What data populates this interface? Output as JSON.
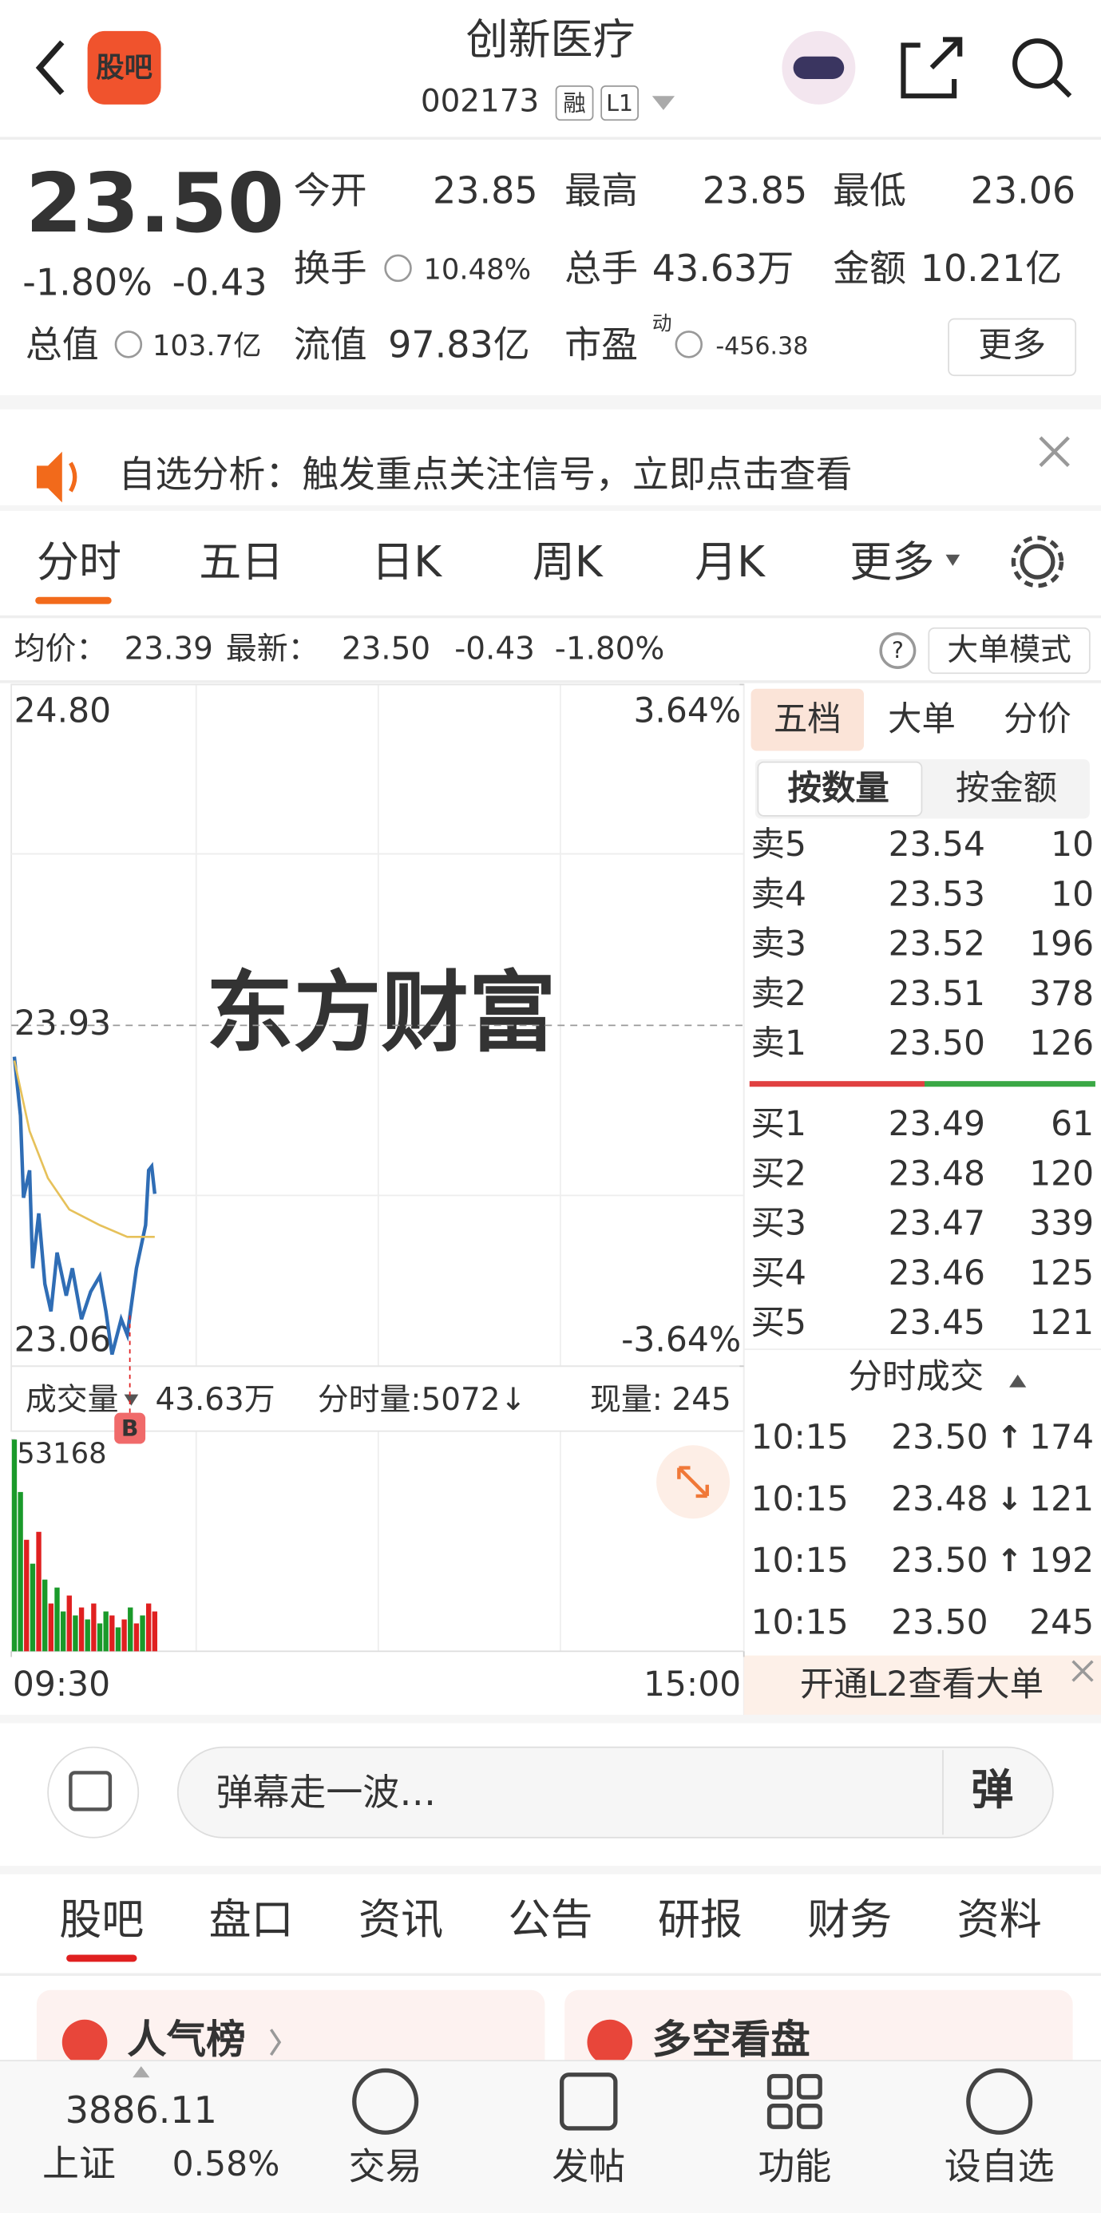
{
  "header": {
    "logo": "股吧",
    "title": "创新医疗",
    "code": "002173",
    "tags": [
      "融",
      "L1"
    ]
  },
  "quote": {
    "price": "23.50",
    "change_pct": "-1.80%",
    "change": "-0.43",
    "fields": [
      {
        "label": "今开",
        "value": "23.85"
      },
      {
        "label": "最高",
        "value": "23.85"
      },
      {
        "label": "最低",
        "value": "23.06"
      },
      {
        "label": "换手",
        "value": "10.48%"
      },
      {
        "label": "总手",
        "value": "43.63万"
      },
      {
        "label": "金额",
        "value": "10.21亿"
      },
      {
        "label": "总值",
        "value": "103.7亿"
      },
      {
        "label": "流值",
        "value": "97.83亿"
      },
      {
        "label": "市盈",
        "superscript": "动",
        "value": "-456.38"
      }
    ],
    "more_button": "更多"
  },
  "notice": "自选分析：触发重点关注信号，立即点击查看",
  "chart_tabs": [
    "分时",
    "五日",
    "日K",
    "周K",
    "月K",
    "更多"
  ],
  "info_bar": {
    "avg_label": "均价：",
    "avg": "23.39",
    "latest_label": "最新：",
    "latest": "23.50",
    "change": "-0.43",
    "change_pct": "-1.80%",
    "mode_button": "大单模式"
  },
  "watermark": "东方财富",
  "chart_data": [
    {
      "type": "line",
      "xlim": [
        0,
        240
      ],
      "xticks": [
        {
          "value": 0,
          "label": "09:30"
        },
        {
          "value": 240,
          "label": "15:00"
        }
      ],
      "ylim": [
        23.06,
        24.8
      ],
      "yticks": [
        {
          "value": 24.8,
          "label": "24.80"
        },
        23.93,
        23.06
      ],
      "y2lim": [
        -3.64,
        3.64
      ],
      "y2ticks": [
        {
          "value": 3.64,
          "label": "3.64%"
        },
        {
          "value": -3.64,
          "label": "-3.64%"
        }
      ],
      "series": [
        {
          "color": "#2f6db5",
          "x": [
            1,
            3,
            4,
            6,
            7,
            9,
            11,
            13,
            15,
            18,
            20,
            23,
            26,
            29,
            31,
            33,
            36,
            38,
            41,
            44,
            45,
            46,
            47
          ],
          "values": [
            23.85,
            23.7,
            23.49,
            23.56,
            23.31,
            23.45,
            23.27,
            23.2,
            23.35,
            23.24,
            23.31,
            23.18,
            23.25,
            23.29,
            23.2,
            23.09,
            23.18,
            23.14,
            23.31,
            23.42,
            23.56,
            23.57,
            23.5
          ]
        },
        {
          "color": "#e6c15a",
          "x": [
            1,
            6,
            12,
            19,
            29,
            38,
            47
          ],
          "values": [
            23.84,
            23.66,
            23.54,
            23.46,
            23.42,
            23.39,
            23.39
          ]
        }
      ]
    },
    {
      "type": "bar",
      "title": "成交量",
      "total": "43.63万",
      "minute_volume": "分时量:5072↓",
      "current_label": "现量:",
      "current": "245",
      "marker": "B",
      "xlim": [
        0,
        240
      ],
      "ylim": [
        0,
        53168
      ],
      "yticks": [
        53168
      ],
      "x": [
        1,
        3,
        5,
        7,
        9,
        11,
        13,
        15,
        17,
        19,
        21,
        23,
        25,
        27,
        29,
        31,
        33,
        35,
        37,
        39,
        41,
        43,
        45,
        47
      ],
      "values": [
        53168,
        40000,
        28000,
        22000,
        30000,
        18000,
        12000,
        16000,
        10000,
        14000,
        9000,
        11000,
        8000,
        12000,
        7000,
        10000,
        9000,
        6000,
        8000,
        11000,
        7000,
        9000,
        12000,
        10000
      ],
      "colors": [
        "#1a9a2a",
        "#1a9a2a",
        "#e02020",
        "#1a9a2a",
        "#e02020",
        "#1a9a2a",
        "#e02020",
        "#1a9a2a",
        "#1a9a2a",
        "#e02020",
        "#1a9a2a",
        "#e02020",
        "#1a9a2a",
        "#e02020",
        "#1a9a2a",
        "#1a9a2a",
        "#e02020",
        "#1a9a2a",
        "#e02020",
        "#1a9a2a",
        "#e02020",
        "#1a9a2a",
        "#e02020",
        "#e02020"
      ]
    }
  ],
  "order_book": {
    "tabs": [
      "五档",
      "大单",
      "分价"
    ],
    "modes": [
      "按数量",
      "按金额"
    ],
    "asks": [
      {
        "label": "卖5",
        "price": "23.54",
        "volume": "10"
      },
      {
        "label": "卖4",
        "price": "23.53",
        "volume": "10"
      },
      {
        "label": "卖3",
        "price": "23.52",
        "volume": "196"
      },
      {
        "label": "卖2",
        "price": "23.51",
        "volume": "378"
      },
      {
        "label": "卖1",
        "price": "23.50",
        "volume": "126"
      }
    ],
    "bids": [
      {
        "label": "买1",
        "price": "23.49",
        "volume": "61"
      },
      {
        "label": "买2",
        "price": "23.48",
        "volume": "120"
      },
      {
        "label": "买3",
        "price": "23.47",
        "volume": "339"
      },
      {
        "label": "买4",
        "price": "23.46",
        "volume": "125"
      },
      {
        "label": "买5",
        "price": "23.45",
        "volume": "121"
      }
    ],
    "trades_title": "分时成交",
    "trades": [
      {
        "time": "10:15",
        "price": "23.50",
        "direction": "↑",
        "volume": "174"
      },
      {
        "time": "10:15",
        "price": "23.48",
        "direction": "↓",
        "volume": "121"
      },
      {
        "time": "10:15",
        "price": "23.50",
        "direction": "↑",
        "volume": "192"
      },
      {
        "time": "10:15",
        "price": "23.50",
        "volume": "245"
      }
    ],
    "l2_banner": "开通L2查看大单"
  },
  "comment_bar": {
    "placeholder": "弹幕走一波…",
    "danmaku_button": "弹"
  },
  "section_tabs": [
    "股吧",
    "盘口",
    "资讯",
    "公告",
    "研报",
    "财务",
    "资料"
  ],
  "cards": [
    "人气榜",
    "多空看盘"
  ],
  "footer": {
    "index_value": "3886.11",
    "index_name": "上证",
    "index_change": "0.58%",
    "nav": [
      "交易",
      "发帖",
      "功能",
      "设自选"
    ]
  }
}
